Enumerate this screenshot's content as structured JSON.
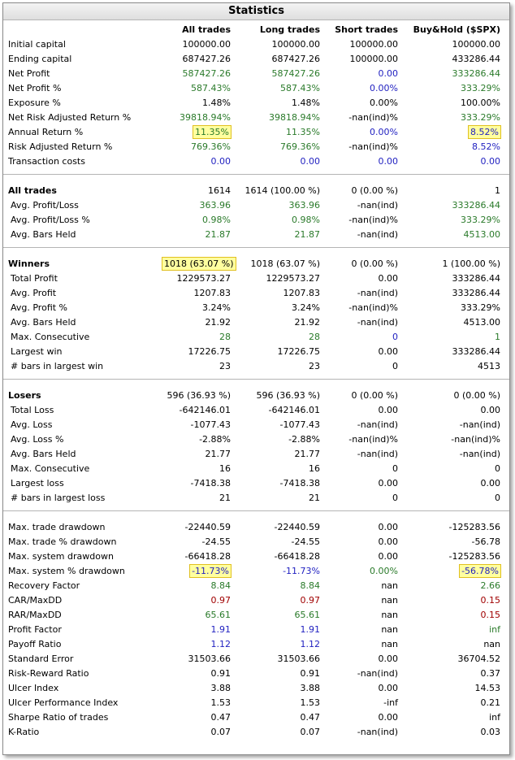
{
  "title": "Statistics",
  "columns": [
    "",
    "All trades",
    "Long trades",
    "Short trades",
    "Buy&Hold ($SPX)"
  ],
  "colors": {
    "black": "#000000",
    "green": "#2a7a2a",
    "blue": "#1f1fc0",
    "red": "#a00000",
    "highlight": "#ffff9f"
  },
  "sections": [
    {
      "rows": [
        {
          "label": "Initial capital",
          "v": [
            "100000.00",
            "100000.00",
            "100000.00",
            "100000.00"
          ],
          "c": [
            "k",
            "k",
            "k",
            "k"
          ]
        },
        {
          "label": "Ending capital",
          "v": [
            "687427.26",
            "687427.26",
            "100000.00",
            "433286.44"
          ],
          "c": [
            "k",
            "k",
            "k",
            "k"
          ]
        },
        {
          "label": "Net Profit",
          "v": [
            "587427.26",
            "587427.26",
            "0.00",
            "333286.44"
          ],
          "c": [
            "g",
            "g",
            "b",
            "g"
          ]
        },
        {
          "label": "Net Profit %",
          "v": [
            "587.43%",
            "587.43%",
            "0.00%",
            "333.29%"
          ],
          "c": [
            "g",
            "g",
            "b",
            "g"
          ]
        },
        {
          "label": "Exposure %",
          "v": [
            "1.48%",
            "1.48%",
            "0.00%",
            "100.00%"
          ],
          "c": [
            "k",
            "k",
            "k",
            "k"
          ]
        },
        {
          "label": "Net Risk Adjusted Return %",
          "v": [
            "39818.94%",
            "39818.94%",
            "-nan(ind)%",
            "333.29%"
          ],
          "c": [
            "g",
            "g",
            "k",
            "g"
          ]
        },
        {
          "label": "Annual Return %",
          "v": [
            "11.35%",
            "11.35%",
            "0.00%",
            "8.52%"
          ],
          "c": [
            "g",
            "g",
            "b",
            "b"
          ],
          "hl": [
            true,
            false,
            false,
            true
          ]
        },
        {
          "label": "Risk Adjusted Return %",
          "v": [
            "769.36%",
            "769.36%",
            "-nan(ind)%",
            "8.52%"
          ],
          "c": [
            "g",
            "g",
            "k",
            "b"
          ]
        },
        {
          "label": "Transaction costs",
          "v": [
            "0.00",
            "0.00",
            "0.00",
            "0.00"
          ],
          "c": [
            "b",
            "b",
            "b",
            "b"
          ]
        }
      ]
    },
    {
      "rows": [
        {
          "label": "All trades",
          "header": true,
          "v": [
            "1614",
            "1614 (100.00 %)",
            "0 (0.00 %)",
            "1"
          ],
          "c": [
            "k",
            "k",
            "k",
            "k"
          ]
        },
        {
          "label": "Avg. Profit/Loss",
          "sub": true,
          "v": [
            "363.96",
            "363.96",
            "-nan(ind)",
            "333286.44"
          ],
          "c": [
            "g",
            "g",
            "k",
            "g"
          ]
        },
        {
          "label": "Avg. Profit/Loss %",
          "sub": true,
          "v": [
            "0.98%",
            "0.98%",
            "-nan(ind)%",
            "333.29%"
          ],
          "c": [
            "g",
            "g",
            "k",
            "g"
          ]
        },
        {
          "label": "Avg. Bars Held",
          "sub": true,
          "v": [
            "21.87",
            "21.87",
            "-nan(ind)",
            "4513.00"
          ],
          "c": [
            "g",
            "g",
            "k",
            "g"
          ]
        }
      ]
    },
    {
      "rows": [
        {
          "label": "Winners",
          "header": true,
          "v": [
            "1018 (63.07 %)",
            "1018 (63.07 %)",
            "0 (0.00 %)",
            "1 (100.00 %)"
          ],
          "c": [
            "k",
            "k",
            "k",
            "k"
          ],
          "hl": [
            true,
            false,
            false,
            false
          ]
        },
        {
          "label": "Total Profit",
          "sub": true,
          "v": [
            "1229573.27",
            "1229573.27",
            "0.00",
            "333286.44"
          ],
          "c": [
            "k",
            "k",
            "k",
            "k"
          ]
        },
        {
          "label": "Avg. Profit",
          "sub": true,
          "v": [
            "1207.83",
            "1207.83",
            "-nan(ind)",
            "333286.44"
          ],
          "c": [
            "k",
            "k",
            "k",
            "k"
          ]
        },
        {
          "label": "Avg. Profit %",
          "sub": true,
          "v": [
            "3.24%",
            "3.24%",
            "-nan(ind)%",
            "333.29%"
          ],
          "c": [
            "k",
            "k",
            "k",
            "k"
          ]
        },
        {
          "label": "Avg. Bars Held",
          "sub": true,
          "v": [
            "21.92",
            "21.92",
            "-nan(ind)",
            "4513.00"
          ],
          "c": [
            "k",
            "k",
            "k",
            "k"
          ]
        },
        {
          "label": "Max. Consecutive",
          "sub": true,
          "v": [
            "28",
            "28",
            "0",
            "1"
          ],
          "c": [
            "g",
            "g",
            "b",
            "g"
          ]
        },
        {
          "label": "Largest win",
          "sub": true,
          "v": [
            "17226.75",
            "17226.75",
            "0.00",
            "333286.44"
          ],
          "c": [
            "k",
            "k",
            "k",
            "k"
          ]
        },
        {
          "label": "# bars in largest win",
          "sub": true,
          "v": [
            "23",
            "23",
            "0",
            "4513"
          ],
          "c": [
            "k",
            "k",
            "k",
            "k"
          ]
        }
      ]
    },
    {
      "rows": [
        {
          "label": "Losers",
          "header": true,
          "v": [
            "596 (36.93 %)",
            "596 (36.93 %)",
            "0 (0.00 %)",
            "0 (0.00 %)"
          ],
          "c": [
            "k",
            "k",
            "k",
            "k"
          ]
        },
        {
          "label": "Total Loss",
          "sub": true,
          "v": [
            "-642146.01",
            "-642146.01",
            "0.00",
            "0.00"
          ],
          "c": [
            "k",
            "k",
            "k",
            "k"
          ]
        },
        {
          "label": "Avg. Loss",
          "sub": true,
          "v": [
            "-1077.43",
            "-1077.43",
            "-nan(ind)",
            "-nan(ind)"
          ],
          "c": [
            "k",
            "k",
            "k",
            "k"
          ]
        },
        {
          "label": "Avg. Loss %",
          "sub": true,
          "v": [
            "-2.88%",
            "-2.88%",
            "-nan(ind)%",
            "-nan(ind)%"
          ],
          "c": [
            "k",
            "k",
            "k",
            "k"
          ]
        },
        {
          "label": "Avg. Bars Held",
          "sub": true,
          "v": [
            "21.77",
            "21.77",
            "-nan(ind)",
            "-nan(ind)"
          ],
          "c": [
            "k",
            "k",
            "k",
            "k"
          ]
        },
        {
          "label": "Max. Consecutive",
          "sub": true,
          "v": [
            "16",
            "16",
            "0",
            "0"
          ],
          "c": [
            "k",
            "k",
            "k",
            "k"
          ]
        },
        {
          "label": "Largest loss",
          "sub": true,
          "v": [
            "-7418.38",
            "-7418.38",
            "0.00",
            "0.00"
          ],
          "c": [
            "k",
            "k",
            "k",
            "k"
          ]
        },
        {
          "label": "# bars in largest loss",
          "sub": true,
          "v": [
            "21",
            "21",
            "0",
            "0"
          ],
          "c": [
            "k",
            "k",
            "k",
            "k"
          ]
        }
      ]
    },
    {
      "rows": [
        {
          "label": "Max. trade drawdown",
          "v": [
            "-22440.59",
            "-22440.59",
            "0.00",
            "-125283.56"
          ],
          "c": [
            "k",
            "k",
            "k",
            "k"
          ]
        },
        {
          "label": "Max. trade % drawdown",
          "v": [
            "-24.55",
            "-24.55",
            "0.00",
            "-56.78"
          ],
          "c": [
            "k",
            "k",
            "k",
            "k"
          ]
        },
        {
          "label": "Max. system drawdown",
          "v": [
            "-66418.28",
            "-66418.28",
            "0.00",
            "-125283.56"
          ],
          "c": [
            "k",
            "k",
            "k",
            "k"
          ]
        },
        {
          "label": "Max. system % drawdown",
          "v": [
            "-11.73%",
            "-11.73%",
            "0.00%",
            "-56.78%"
          ],
          "c": [
            "b",
            "b",
            "g",
            "b"
          ],
          "hl": [
            true,
            false,
            false,
            true
          ]
        },
        {
          "label": "Recovery Factor",
          "v": [
            "8.84",
            "8.84",
            "nan",
            "2.66"
          ],
          "c": [
            "g",
            "g",
            "k",
            "g"
          ]
        },
        {
          "label": "CAR/MaxDD",
          "v": [
            "0.97",
            "0.97",
            "nan",
            "0.15"
          ],
          "c": [
            "r",
            "r",
            "k",
            "r"
          ]
        },
        {
          "label": "RAR/MaxDD",
          "v": [
            "65.61",
            "65.61",
            "nan",
            "0.15"
          ],
          "c": [
            "g",
            "g",
            "k",
            "r"
          ]
        },
        {
          "label": "Profit Factor",
          "v": [
            "1.91",
            "1.91",
            "nan",
            "inf"
          ],
          "c": [
            "b",
            "b",
            "k",
            "g"
          ]
        },
        {
          "label": "Payoff Ratio",
          "v": [
            "1.12",
            "1.12",
            "nan",
            "nan"
          ],
          "c": [
            "b",
            "b",
            "k",
            "k"
          ]
        },
        {
          "label": "Standard Error",
          "v": [
            "31503.66",
            "31503.66",
            "0.00",
            "36704.52"
          ],
          "c": [
            "k",
            "k",
            "k",
            "k"
          ]
        },
        {
          "label": "Risk-Reward Ratio",
          "v": [
            "0.91",
            "0.91",
            "-nan(ind)",
            "0.37"
          ],
          "c": [
            "k",
            "k",
            "k",
            "k"
          ]
        },
        {
          "label": "Ulcer Index",
          "v": [
            "3.88",
            "3.88",
            "0.00",
            "14.53"
          ],
          "c": [
            "k",
            "k",
            "k",
            "k"
          ]
        },
        {
          "label": "Ulcer Performance Index",
          "v": [
            "1.53",
            "1.53",
            "-inf",
            "0.21"
          ],
          "c": [
            "k",
            "k",
            "k",
            "k"
          ]
        },
        {
          "label": "Sharpe Ratio of trades",
          "v": [
            "0.47",
            "0.47",
            "0.00",
            "inf"
          ],
          "c": [
            "k",
            "k",
            "k",
            "k"
          ]
        },
        {
          "label": "K-Ratio",
          "v": [
            "0.07",
            "0.07",
            "-nan(ind)",
            "0.03"
          ],
          "c": [
            "k",
            "k",
            "k",
            "k"
          ]
        }
      ]
    }
  ]
}
